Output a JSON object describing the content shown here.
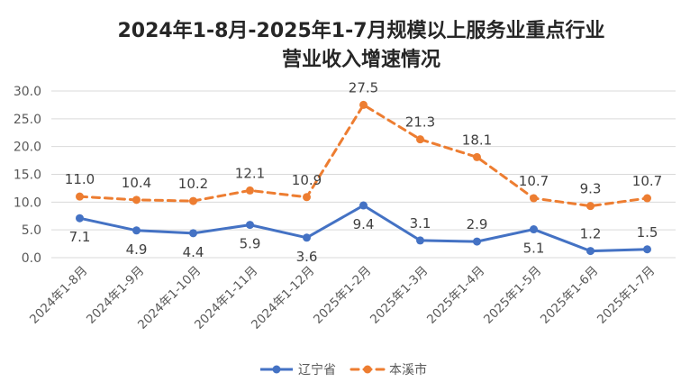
{
  "chart_data": {
    "type": "line",
    "title_lines": [
      "2024年1-8月-2025年1-7月规模以上服务业重点行业",
      "营业收入增速情况"
    ],
    "xlabel": "",
    "ylabel": "",
    "categories": [
      "2024年1-8月",
      "2024年1-9月",
      "2024年1-10月",
      "2024年1-11月",
      "2024年1-12月",
      "2025年1-2月",
      "2025年1-3月",
      "2025年1-4月",
      "2025年1-5月",
      "2025年1-6月",
      "2025年1-7月"
    ],
    "ylim": [
      0,
      30
    ],
    "yticks": [
      0,
      5,
      10,
      15,
      20,
      25,
      30
    ],
    "grid": true,
    "legend": "bottom",
    "data_labels": true,
    "series": [
      {
        "name": "辽宁省",
        "values": [
          7.1,
          4.9,
          4.4,
          5.9,
          3.6,
          9.4,
          3.1,
          2.9,
          5.1,
          1.2,
          1.5
        ],
        "color": "#4472C4",
        "dashed": false
      },
      {
        "name": "本溪市",
        "values": [
          11.0,
          10.4,
          10.2,
          12.1,
          10.9,
          27.5,
          21.3,
          18.1,
          10.7,
          9.3,
          10.7
        ],
        "color": "#ED7D31",
        "dashed": true
      }
    ]
  }
}
